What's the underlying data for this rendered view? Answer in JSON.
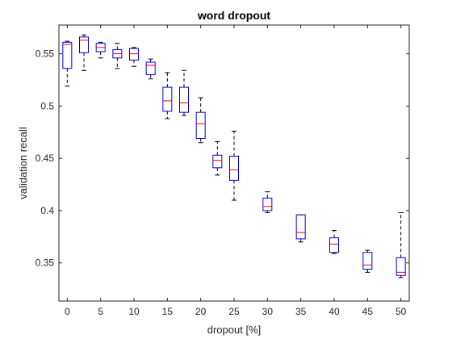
{
  "chart_data": {
    "type": "boxplot",
    "title": "word dropout",
    "xlabel": "dropout [%]",
    "ylabel": "validation recall",
    "xlim": [
      -1.25,
      51.25
    ],
    "ylim": [
      0.3135,
      0.5775
    ],
    "xticks": [
      0,
      5,
      10,
      15,
      20,
      25,
      30,
      35,
      40,
      45,
      50
    ],
    "yticks": [
      0.35,
      0.4,
      0.45,
      0.5,
      0.55
    ],
    "ytick_labels": [
      "0.35",
      "0.4",
      "0.45",
      "0.5",
      "0.55"
    ],
    "colors": {
      "box": "#0000ff",
      "median": "#ff0000",
      "whisker": "#000000"
    },
    "grid": false,
    "boxes": [
      {
        "x": 0,
        "min": 0.519,
        "q1": 0.536,
        "median": 0.559,
        "q3": 0.561,
        "max": 0.562
      },
      {
        "x": 2.5,
        "min": 0.534,
        "q1": 0.551,
        "median": 0.563,
        "q3": 0.566,
        "max": 0.568
      },
      {
        "x": 5,
        "min": 0.546,
        "q1": 0.552,
        "median": 0.556,
        "q3": 0.56,
        "max": 0.561
      },
      {
        "x": 7.5,
        "min": 0.536,
        "q1": 0.546,
        "median": 0.55,
        "q3": 0.554,
        "max": 0.56
      },
      {
        "x": 10,
        "min": 0.538,
        "q1": 0.544,
        "median": 0.55,
        "q3": 0.555,
        "max": 0.556
      },
      {
        "x": 12.5,
        "min": 0.526,
        "q1": 0.53,
        "median": 0.539,
        "q3": 0.542,
        "max": 0.545
      },
      {
        "x": 15,
        "min": 0.488,
        "q1": 0.495,
        "median": 0.505,
        "q3": 0.518,
        "max": 0.532
      },
      {
        "x": 17.5,
        "min": 0.491,
        "q1": 0.494,
        "median": 0.503,
        "q3": 0.518,
        "max": 0.534
      },
      {
        "x": 20,
        "min": 0.465,
        "q1": 0.469,
        "median": 0.483,
        "q3": 0.494,
        "max": 0.508
      },
      {
        "x": 22.5,
        "min": 0.434,
        "q1": 0.441,
        "median": 0.448,
        "q3": 0.453,
        "max": 0.466
      },
      {
        "x": 25,
        "min": 0.41,
        "q1": 0.429,
        "median": 0.439,
        "q3": 0.452,
        "max": 0.476
      },
      {
        "x": 30,
        "min": 0.398,
        "q1": 0.4,
        "median": 0.404,
        "q3": 0.412,
        "max": 0.418
      },
      {
        "x": 35,
        "min": 0.37,
        "q1": 0.373,
        "median": 0.379,
        "q3": 0.396,
        "max": 0.396
      },
      {
        "x": 40,
        "min": 0.359,
        "q1": 0.36,
        "median": 0.368,
        "q3": 0.374,
        "max": 0.381
      },
      {
        "x": 45,
        "min": 0.341,
        "q1": 0.344,
        "median": 0.348,
        "q3": 0.36,
        "max": 0.362
      },
      {
        "x": 50,
        "min": 0.336,
        "q1": 0.338,
        "median": 0.341,
        "q3": 0.355,
        "max": 0.398
      }
    ]
  }
}
